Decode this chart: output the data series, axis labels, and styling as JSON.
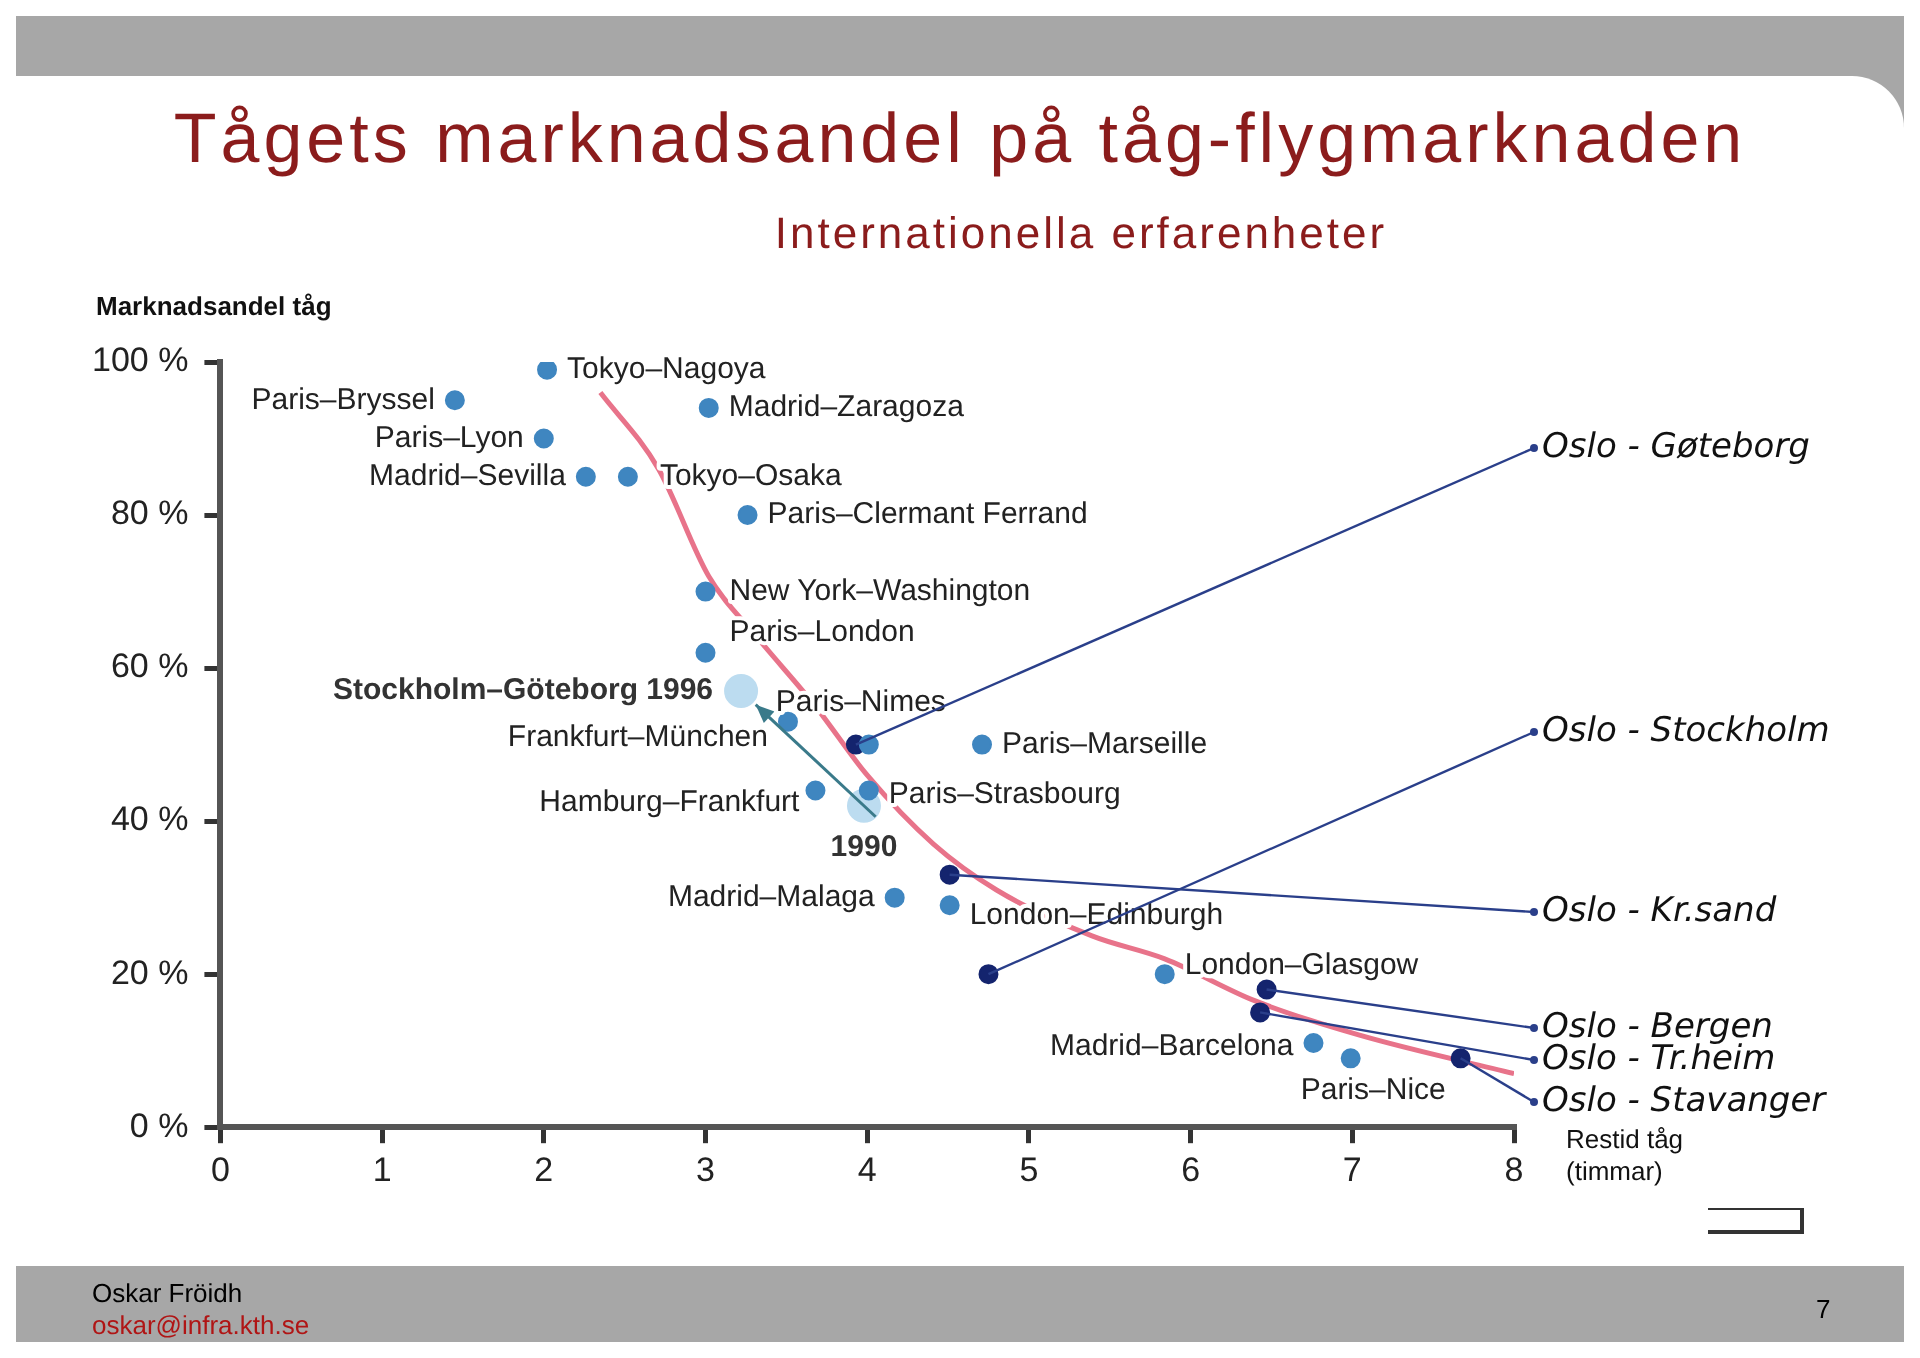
{
  "chart_data": {
    "type": "scatter",
    "title": "Tågets marknadsandel på tåg-flygmarknaden",
    "subtitle": "Internationella erfarenheter",
    "ylabel": "Marknadsandel tåg",
    "xlabel": "Restid tåg (timmar)",
    "xlim": [
      0,
      8
    ],
    "xticks": [
      0,
      1,
      2,
      3,
      4,
      5,
      6,
      7,
      8
    ],
    "ylim": [
      0,
      100
    ],
    "yticks": [
      {
        "value": 0,
        "label": "0 %"
      },
      {
        "value": 20,
        "label": "20 %"
      },
      {
        "value": 40,
        "label": "40 %"
      },
      {
        "value": 60,
        "label": "60 %"
      },
      {
        "value": 80,
        "label": "80 %"
      },
      {
        "value": 100,
        "label": "100 %"
      }
    ],
    "grid": false,
    "legend": false,
    "marker": "circle",
    "series": [
      {
        "color": "#3f86c0",
        "x": [
          2.02,
          1.45,
          3.02,
          2.0,
          2.26,
          2.52,
          3.26,
          3.0,
          3.0,
          3.51,
          4.01,
          4.71,
          3.68,
          4.01,
          4.17,
          4.51,
          5.84,
          6.76,
          6.99
        ],
        "values": [
          99,
          95,
          94,
          90,
          85,
          85,
          80,
          70,
          62,
          53,
          50,
          50,
          44,
          44,
          30,
          29,
          20,
          11,
          9
        ]
      },
      {
        "color": "#bcdcf0",
        "x": [
          3.98,
          3.22
        ],
        "values": [
          42,
          57
        ]
      },
      {
        "color": "#14246e",
        "x": [
          3.93,
          4.75,
          4.51,
          6.47,
          6.43,
          7.67
        ],
        "values": [
          50,
          20,
          33,
          18,
          15,
          9
        ]
      },
      {
        "type": "line",
        "color": "#e8738a",
        "marker": "none",
        "x": [
          2.35,
          2.71,
          3.02,
          3.32,
          3.68,
          4.0,
          4.41,
          4.8,
          5.39,
          5.84,
          6.4,
          7.05,
          8.0
        ],
        "values": [
          96,
          86,
          72,
          64,
          55,
          46,
          37,
          31,
          25,
          22,
          16.5,
          12,
          7
        ]
      }
    ],
    "annotations": [
      {
        "text": "Tokyo–Nagoya",
        "x": 2.02,
        "y": 99
      },
      {
        "text": "Paris–Bryssel",
        "x": 1.45,
        "y": 95
      },
      {
        "text": "Madrid–Zaragoza",
        "x": 3.02,
        "y": 94
      },
      {
        "text": "Paris–Lyon",
        "x": 2.0,
        "y": 90
      },
      {
        "text": "Madrid–Sevilla",
        "x": 2.26,
        "y": 85
      },
      {
        "text": "Tokyo–Osaka",
        "x": 2.52,
        "y": 85
      },
      {
        "text": "Paris–Clermant Ferrand",
        "x": 3.26,
        "y": 80
      },
      {
        "text": "New York–Washington",
        "x": 3.0,
        "y": 70
      },
      {
        "text": "Paris–London",
        "x": 3.0,
        "y": 62
      },
      {
        "text": "Frankfurt–München",
        "x": 3.51,
        "y": 53
      },
      {
        "text": "Paris–Nimes",
        "x": 4.01,
        "y": 50
      },
      {
        "text": "Paris–Marseille",
        "x": 4.71,
        "y": 50
      },
      {
        "text": "Hamburg–Frankfurt",
        "x": 3.68,
        "y": 44
      },
      {
        "text": "Paris–Strasbourg",
        "x": 4.01,
        "y": 44
      },
      {
        "text": "Madrid–Malaga",
        "x": 4.17,
        "y": 30
      },
      {
        "text": "London–Edinburgh",
        "x": 4.51,
        "y": 29
      },
      {
        "text": "London–Glasgow",
        "x": 5.84,
        "y": 20
      },
      {
        "text": "Madrid–Barcelona",
        "x": 6.76,
        "y": 11
      },
      {
        "text": "Paris–Nice",
        "x": 6.99,
        "y": 9
      },
      {
        "text": "Stockholm–Göteborg 1996",
        "x": 3.22,
        "y": 57
      },
      {
        "text": "1990",
        "x": 3.98,
        "y": 42
      },
      {
        "text": "Oslo - Gøteborg",
        "x": 3.93,
        "y": 50
      },
      {
        "text": "Oslo - Stockholm",
        "x": 4.75,
        "y": 20
      },
      {
        "text": "Oslo - Kr.sand",
        "x": 4.51,
        "y": 33
      },
      {
        "text": "Oslo - Bergen",
        "x": 6.47,
        "y": 18
      },
      {
        "text": "Oslo - Tr.heim",
        "x": 6.43,
        "y": 15
      },
      {
        "text": "Oslo - Stavanger",
        "x": 7.67,
        "y": 9
      },
      "Oskar Fröidh",
      "oskar@infra.kth.se",
      "7"
    ]
  }
}
